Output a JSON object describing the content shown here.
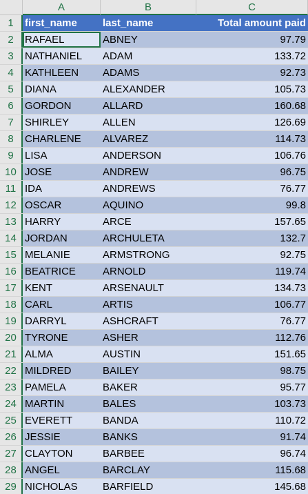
{
  "columns": [
    "A",
    "B",
    "C"
  ],
  "header": {
    "row": "1",
    "first_name": "first_name",
    "last_name": "last_name",
    "total": "Total amount paid"
  },
  "rows": [
    {
      "n": "2",
      "first": "RAFAEL",
      "last": "ABNEY",
      "total": "97.79"
    },
    {
      "n": "3",
      "first": "NATHANIEL",
      "last": "ADAM",
      "total": "133.72"
    },
    {
      "n": "4",
      "first": "KATHLEEN",
      "last": "ADAMS",
      "total": "92.73"
    },
    {
      "n": "5",
      "first": "DIANA",
      "last": "ALEXANDER",
      "total": "105.73"
    },
    {
      "n": "6",
      "first": "GORDON",
      "last": "ALLARD",
      "total": "160.68"
    },
    {
      "n": "7",
      "first": "SHIRLEY",
      "last": "ALLEN",
      "total": "126.69"
    },
    {
      "n": "8",
      "first": "CHARLENE",
      "last": "ALVAREZ",
      "total": "114.73"
    },
    {
      "n": "9",
      "first": "LISA",
      "last": "ANDERSON",
      "total": "106.76"
    },
    {
      "n": "10",
      "first": "JOSE",
      "last": "ANDREW",
      "total": "96.75"
    },
    {
      "n": "11",
      "first": "IDA",
      "last": "ANDREWS",
      "total": "76.77"
    },
    {
      "n": "12",
      "first": "OSCAR",
      "last": "AQUINO",
      "total": "99.8"
    },
    {
      "n": "13",
      "first": "HARRY",
      "last": "ARCE",
      "total": "157.65"
    },
    {
      "n": "14",
      "first": "JORDAN",
      "last": "ARCHULETA",
      "total": "132.7"
    },
    {
      "n": "15",
      "first": "MELANIE",
      "last": "ARMSTRONG",
      "total": "92.75"
    },
    {
      "n": "16",
      "first": "BEATRICE",
      "last": "ARNOLD",
      "total": "119.74"
    },
    {
      "n": "17",
      "first": "KENT",
      "last": "ARSENAULT",
      "total": "134.73"
    },
    {
      "n": "18",
      "first": "CARL",
      "last": "ARTIS",
      "total": "106.77"
    },
    {
      "n": "19",
      "first": "DARRYL",
      "last": "ASHCRAFT",
      "total": "76.77"
    },
    {
      "n": "20",
      "first": "TYRONE",
      "last": "ASHER",
      "total": "112.76"
    },
    {
      "n": "21",
      "first": "ALMA",
      "last": "AUSTIN",
      "total": "151.65"
    },
    {
      "n": "22",
      "first": "MILDRED",
      "last": "BAILEY",
      "total": "98.75"
    },
    {
      "n": "23",
      "first": "PAMELA",
      "last": "BAKER",
      "total": "95.77"
    },
    {
      "n": "24",
      "first": "MARTIN",
      "last": "BALES",
      "total": "103.73"
    },
    {
      "n": "25",
      "first": "EVERETT",
      "last": "BANDA",
      "total": "110.72"
    },
    {
      "n": "26",
      "first": "JESSIE",
      "last": "BANKS",
      "total": "91.74"
    },
    {
      "n": "27",
      "first": "CLAYTON",
      "last": "BARBEE",
      "total": "96.74"
    },
    {
      "n": "28",
      "first": "ANGEL",
      "last": "BARCLAY",
      "total": "115.68"
    },
    {
      "n": "29",
      "first": "NICHOLAS",
      "last": "BARFIELD",
      "total": "145.68"
    }
  ]
}
